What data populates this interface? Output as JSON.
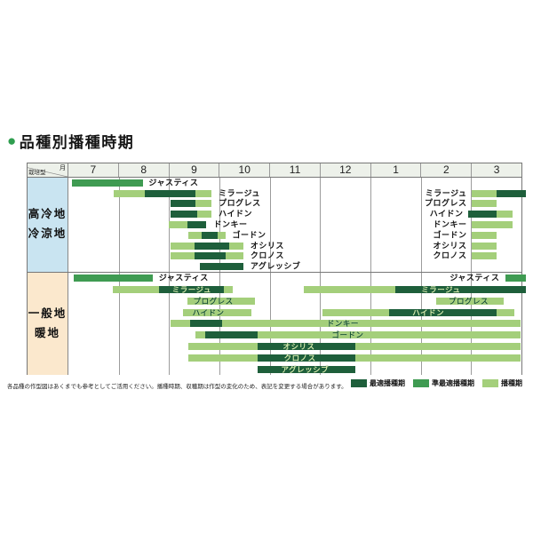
{
  "title": {
    "bullet": "●",
    "text": "品種別播種時期"
  },
  "footnote": "各品種の作型図はあくまでも参考としてご活用ください。播種時期、収穫期は作型の変化のため、表記を変更する場合があります。",
  "colors": {
    "dark": "#1e5f3b",
    "mid": "#3f9b52",
    "light": "#a4cf7b",
    "accent_green": "#2f9e4f",
    "region1_bg": "#c9e4f1",
    "region2_bg": "#fbe8cd",
    "header_bg": "#edf1ea",
    "grid": "#9c9c9c"
  },
  "legend": [
    {
      "label": "最適播種期",
      "color": "dark"
    },
    {
      "label": "準最適播種期",
      "color": "mid"
    },
    {
      "label": "播種期",
      "color": "light"
    }
  ],
  "chart_data": {
    "type": "bar",
    "subtype": "gantt-sowing-schedule",
    "title": "品種別播種時期",
    "corner": {
      "row_label": "栽培型",
      "col_label": "月"
    },
    "x_axis": {
      "unit": "month",
      "months": [
        "7",
        "8",
        "9",
        "10",
        "11",
        "12",
        "1",
        "2",
        "3"
      ],
      "note": "segment s/e values are months elapsed from start of month 7 (July); 9 = end of March"
    },
    "legend_meaning": {
      "dark": "最適播種期",
      "mid": "準最適播種期",
      "light": "播種期"
    },
    "regions": [
      {
        "label_lines": [
          "高冷地",
          "冷涼地"
        ],
        "rows": [
          {
            "variety": "ジャスティス",
            "segments": [
              {
                "c": "mid",
                "s": 0.07,
                "e": 1.48
              }
            ],
            "labels": [
              {
                "text": "ジャスティス",
                "u": 1.56,
                "anchor": "start",
                "tone": "black"
              }
            ]
          },
          {
            "variety": "ミラージュ",
            "segments": [
              {
                "c": "light",
                "s": 0.9,
                "e": 1.51
              },
              {
                "c": "dark",
                "s": 1.51,
                "e": 2.53
              },
              {
                "c": "light",
                "s": 2.53,
                "e": 2.85
              },
              {
                "c": "light",
                "s": 8.01,
                "e": 8.51
              },
              {
                "c": "dark",
                "s": 8.51,
                "e": 9.08
              }
            ],
            "labels": [
              {
                "text": "ミラージュ",
                "u": 2.95,
                "anchor": "start",
                "tone": "black"
              },
              {
                "text": "ミラージュ",
                "u": 7.95,
                "anchor": "end",
                "tone": "black"
              }
            ]
          },
          {
            "variety": "プログレス",
            "segments": [
              {
                "c": "dark",
                "s": 2.03,
                "e": 2.53
              },
              {
                "c": "light",
                "s": 2.53,
                "e": 2.85
              },
              {
                "c": "light",
                "s": 8.01,
                "e": 8.51
              }
            ],
            "labels": [
              {
                "text": "プログレス",
                "u": 2.95,
                "anchor": "start",
                "tone": "black"
              },
              {
                "text": "プログレス",
                "u": 7.95,
                "anchor": "end",
                "tone": "black"
              }
            ]
          },
          {
            "variety": "ハイドン",
            "segments": [
              {
                "c": "dark",
                "s": 2.03,
                "e": 2.56
              },
              {
                "c": "light",
                "s": 2.56,
                "e": 2.85
              },
              {
                "c": "dark",
                "s": 7.94,
                "e": 8.51
              },
              {
                "c": "light",
                "s": 8.51,
                "e": 8.83
              }
            ],
            "labels": [
              {
                "text": "ハイドン",
                "u": 2.95,
                "anchor": "start",
                "tone": "black"
              },
              {
                "text": "ハイドン",
                "u": 7.88,
                "anchor": "end",
                "tone": "black"
              }
            ]
          },
          {
            "variety": "ドンキー",
            "segments": [
              {
                "c": "light",
                "s": 2.0,
                "e": 2.37
              },
              {
                "c": "dark",
                "s": 2.37,
                "e": 2.74
              },
              {
                "c": "light",
                "s": 8.01,
                "e": 8.83
              }
            ],
            "labels": [
              {
                "text": "ドンキー",
                "u": 2.85,
                "anchor": "start",
                "tone": "black"
              },
              {
                "text": "ドンキー",
                "u": 7.95,
                "anchor": "end",
                "tone": "black"
              }
            ]
          },
          {
            "variety": "ゴードン",
            "segments": [
              {
                "c": "light",
                "s": 2.39,
                "e": 2.65
              },
              {
                "c": "dark",
                "s": 2.65,
                "e": 2.97
              },
              {
                "c": "light",
                "s": 2.97,
                "e": 3.12
              },
              {
                "c": "light",
                "s": 8.01,
                "e": 8.51
              }
            ],
            "labels": [
              {
                "text": "ゴードン",
                "u": 3.22,
                "anchor": "start",
                "tone": "black"
              },
              {
                "text": "ゴードン",
                "u": 7.95,
                "anchor": "end",
                "tone": "black"
              }
            ]
          },
          {
            "variety": "オシリス",
            "segments": [
              {
                "c": "light",
                "s": 2.03,
                "e": 2.5
              },
              {
                "c": "dark",
                "s": 2.5,
                "e": 3.2
              },
              {
                "c": "light",
                "s": 3.2,
                "e": 3.47
              },
              {
                "c": "light",
                "s": 8.01,
                "e": 8.51
              }
            ],
            "labels": [
              {
                "text": "オシリス",
                "u": 3.58,
                "anchor": "start",
                "tone": "black"
              },
              {
                "text": "オシリス",
                "u": 7.95,
                "anchor": "end",
                "tone": "black"
              }
            ]
          },
          {
            "variety": "クロノス",
            "segments": [
              {
                "c": "light",
                "s": 2.03,
                "e": 2.5
              },
              {
                "c": "dark",
                "s": 2.5,
                "e": 3.12
              },
              {
                "c": "light",
                "s": 3.12,
                "e": 3.47
              },
              {
                "c": "light",
                "s": 8.01,
                "e": 8.51
              }
            ],
            "labels": [
              {
                "text": "クロノス",
                "u": 3.58,
                "anchor": "start",
                "tone": "black"
              },
              {
                "text": "クロノス",
                "u": 7.95,
                "anchor": "end",
                "tone": "black"
              }
            ]
          },
          {
            "variety": "アグレッシブ",
            "segments": [
              {
                "c": "dark",
                "s": 2.62,
                "e": 3.47
              }
            ],
            "labels": [
              {
                "text": "アグレッシブ",
                "u": 3.58,
                "anchor": "start",
                "tone": "black"
              }
            ]
          }
        ]
      },
      {
        "label_lines": [
          "一般地",
          "暖地"
        ],
        "rows": [
          {
            "variety": "ジャスティス",
            "segments": [
              {
                "c": "mid",
                "s": 0.1,
                "e": 1.68
              },
              {
                "c": "mid",
                "s": 8.68,
                "e": 9.08
              }
            ],
            "labels": [
              {
                "text": "ジャスティス",
                "u": 1.76,
                "anchor": "start",
                "tone": "black"
              },
              {
                "text": "ジャスティス",
                "u": 8.6,
                "anchor": "end",
                "tone": "black"
              }
            ]
          },
          {
            "variety": "ミラージュ",
            "segments": [
              {
                "c": "light",
                "s": 0.89,
                "e": 1.8
              },
              {
                "c": "dark",
                "s": 1.8,
                "e": 3.09
              },
              {
                "c": "light",
                "s": 3.09,
                "e": 3.27
              },
              {
                "c": "light",
                "s": 4.67,
                "e": 6.49
              },
              {
                "c": "dark",
                "s": 6.49,
                "e": 9.08
              }
            ],
            "labels": [
              {
                "text": "ミラージュ",
                "u": 2.45,
                "anchor": "middle",
                "tone": "ondark"
              },
              {
                "text": "ミラージュ",
                "u": 7.4,
                "anchor": "middle",
                "tone": "ondark"
              }
            ]
          },
          {
            "variety": "プログレス",
            "segments": [
              {
                "c": "light",
                "s": 2.36,
                "e": 3.7
              },
              {
                "c": "light",
                "s": 7.31,
                "e": 8.65
              }
            ],
            "labels": [
              {
                "text": "プログレス",
                "u": 2.88,
                "anchor": "middle",
                "tone": "onlight"
              },
              {
                "text": "プログレス",
                "u": 7.95,
                "anchor": "middle",
                "tone": "onlight"
              }
            ]
          },
          {
            "variety": "ハイドン",
            "segments": [
              {
                "c": "light",
                "s": 2.27,
                "e": 3.64
              },
              {
                "c": "light",
                "s": 5.05,
                "e": 6.37
              },
              {
                "c": "dark",
                "s": 6.37,
                "e": 8.51
              },
              {
                "c": "light",
                "s": 8.51,
                "e": 8.86
              }
            ],
            "labels": [
              {
                "text": "ハイドン",
                "u": 2.78,
                "anchor": "middle",
                "tone": "onlight"
              },
              {
                "text": "ハイドン",
                "u": 7.15,
                "anchor": "middle",
                "tone": "ondark"
              }
            ]
          },
          {
            "variety": "ドンキー",
            "segments": [
              {
                "c": "light",
                "s": 2.03,
                "e": 2.41
              },
              {
                "c": "dark",
                "s": 2.41,
                "e": 3.06
              },
              {
                "c": "light",
                "s": 3.06,
                "e": 8.98
              }
            ],
            "labels": [
              {
                "text": "ドンキー",
                "u": 5.45,
                "anchor": "middle",
                "tone": "onlight"
              }
            ]
          },
          {
            "variety": "ゴードン",
            "segments": [
              {
                "c": "light",
                "s": 2.53,
                "e": 2.71
              },
              {
                "c": "dark",
                "s": 2.71,
                "e": 3.76
              },
              {
                "c": "light",
                "s": 3.76,
                "e": 8.98
              }
            ],
            "labels": [
              {
                "text": "ゴードン",
                "u": 5.55,
                "anchor": "middle",
                "tone": "onlight"
              }
            ]
          },
          {
            "variety": "オシリス",
            "segments": [
              {
                "c": "light",
                "s": 2.39,
                "e": 3.76
              },
              {
                "c": "dark",
                "s": 3.76,
                "e": 5.7
              },
              {
                "c": "light",
                "s": 5.7,
                "e": 8.98
              }
            ],
            "labels": [
              {
                "text": "オシリス",
                "u": 4.58,
                "anchor": "middle",
                "tone": "ondark"
              }
            ]
          },
          {
            "variety": "クロノス",
            "segments": [
              {
                "c": "light",
                "s": 2.39,
                "e": 3.76
              },
              {
                "c": "dark",
                "s": 3.76,
                "e": 5.7
              },
              {
                "c": "light",
                "s": 5.7,
                "e": 8.98
              }
            ],
            "labels": [
              {
                "text": "クロノス",
                "u": 4.6,
                "anchor": "middle",
                "tone": "ondark"
              }
            ]
          },
          {
            "variety": "アグレッシブ",
            "segments": [
              {
                "c": "dark",
                "s": 3.76,
                "e": 5.7
              }
            ],
            "labels": [
              {
                "text": "アグレッシブ",
                "u": 4.7,
                "anchor": "middle",
                "tone": "ondark"
              }
            ]
          }
        ]
      }
    ]
  }
}
